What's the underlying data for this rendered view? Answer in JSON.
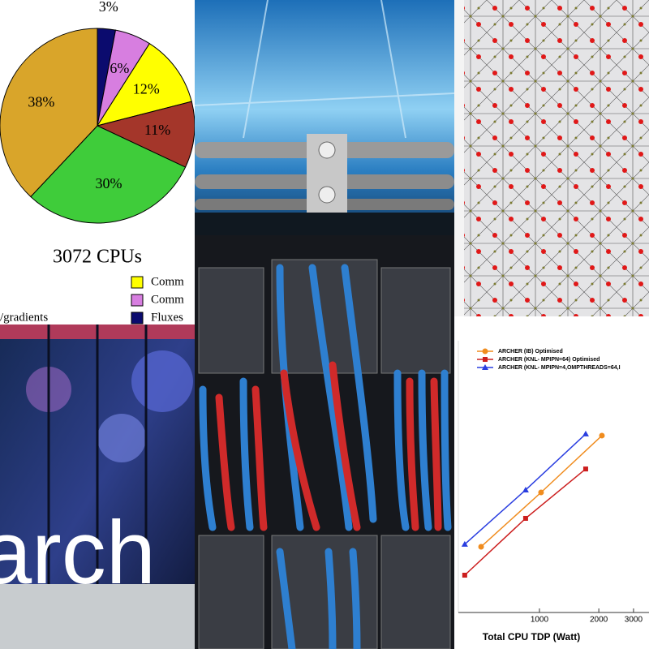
{
  "chart_data": [
    {
      "type": "pie",
      "title": "3072 CPUs",
      "categories": [
        "Fluxes",
        "Comm",
        "Comm",
        null,
        null,
        null
      ],
      "values": [
        3,
        6,
        12,
        11,
        30,
        38
      ],
      "value_labels": [
        "3%",
        "6%",
        "12%",
        "11%",
        "30%",
        "38%"
      ],
      "colors": [
        "#0b0b6e",
        "#d77ee0",
        "#ffff00",
        "#a4362a",
        "#3fcc3a",
        "#d9a52a"
      ],
      "annotations": [
        "/gradients"
      ]
    },
    {
      "type": "line",
      "xlabel": "Total CPU TDP (Watt)",
      "xscale": "log",
      "xlim": [
        388,
        3594
      ],
      "xticks": [
        1000,
        2000,
        3000
      ],
      "ylim": [
        0,
        100
      ],
      "series": [
        {
          "name": "ARCHER (IB) Optimised",
          "color": "#f08c1e",
          "marker": "circle",
          "x": [
            506,
            1019,
            2074
          ],
          "values": [
            25.3,
            45,
            65.6
          ]
        },
        {
          "name": "ARCHER (KNL- MPIPN=64) Optimised",
          "color": "#cc1e1e",
          "marker": "square",
          "x": [
            418,
            851,
            1716
          ],
          "values": [
            15,
            35.6,
            53.5
          ]
        },
        {
          "name": "ARCHER (KNL- MPIPN=4,OMPTHREADS=64,I",
          "color": "#2a3ee0",
          "marker": "triangle",
          "x": [
            418,
            851,
            1716
          ],
          "values": [
            26.2,
            45.9,
            66.2
          ]
        }
      ]
    }
  ],
  "photo_text": "arch"
}
